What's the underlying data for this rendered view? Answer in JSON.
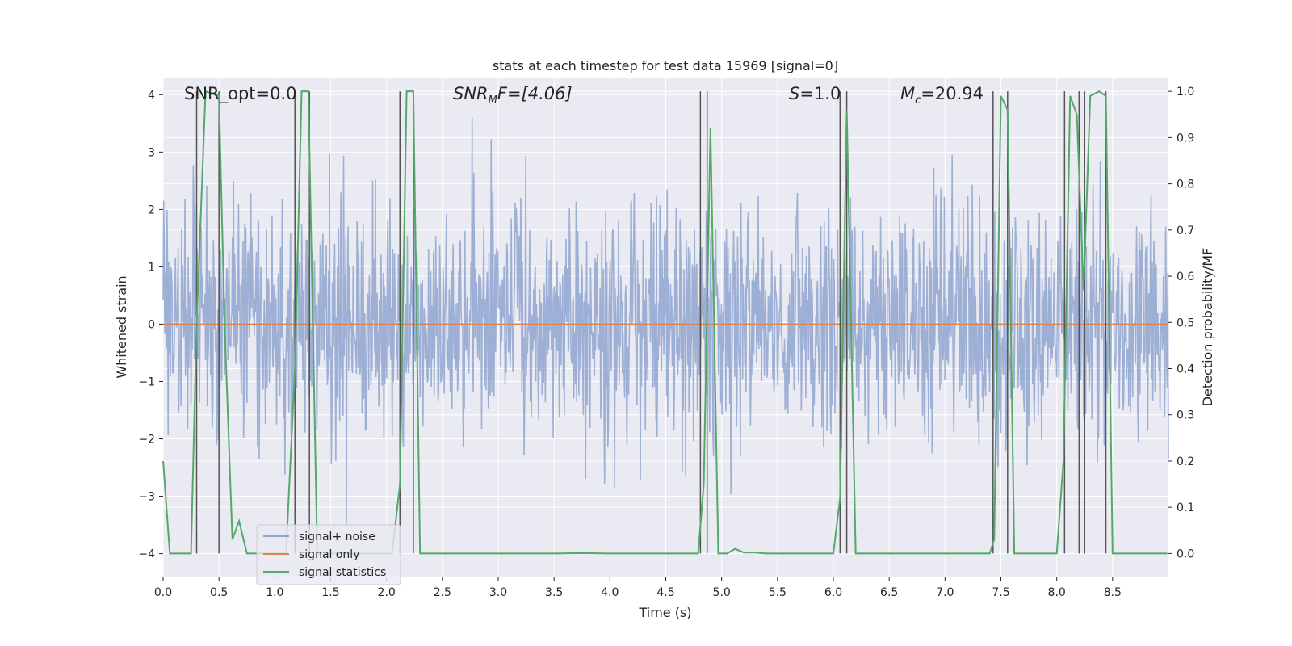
{
  "chart_data": {
    "type": "line",
    "title": "stats at each timestep for test data 15969 [signal=0]",
    "xlabel": "Time (s)",
    "ylabel": "Whitened strain",
    "ylabel_right": "Detection probability/MF",
    "xlim": [
      0.0,
      9.0
    ],
    "ylim": [
      -4.4,
      4.3
    ],
    "ylim_right": [
      -0.05,
      1.03
    ],
    "x_ticks": [
      "0.0",
      "0.5",
      "1.0",
      "1.5",
      "2.0",
      "2.5",
      "3.0",
      "3.5",
      "4.0",
      "4.5",
      "5.0",
      "5.5",
      "6.0",
      "6.5",
      "7.0",
      "7.5",
      "8.0",
      "8.5"
    ],
    "x_tick_values": [
      0.0,
      0.5,
      1.0,
      1.5,
      2.0,
      2.5,
      3.0,
      3.5,
      4.0,
      4.5,
      5.0,
      5.5,
      6.0,
      6.5,
      7.0,
      7.5,
      8.0,
      8.5
    ],
    "y_ticks": [
      "−4",
      "−3",
      "−2",
      "−1",
      "0",
      "1",
      "2",
      "3",
      "4"
    ],
    "y_tick_values": [
      -4,
      -3,
      -2,
      -1,
      0,
      1,
      2,
      3,
      4
    ],
    "y_right_ticks": [
      "0.0",
      "0.1",
      "0.2",
      "0.3",
      "0.4",
      "0.5",
      "0.6",
      "0.7",
      "0.8",
      "0.9",
      "1.0"
    ],
    "y_right_tick_values": [
      0.0,
      0.1,
      0.2,
      0.3,
      0.4,
      0.5,
      0.6,
      0.7,
      0.8,
      0.9,
      1.0
    ],
    "annotations": {
      "snr_opt": "SNR_opt=0.0",
      "snr_mf_prefix": "SNR",
      "snr_mf_sub": "M",
      "snr_mf_suffix": "F=[4.06]",
      "s_label": "S",
      "s_value": "=1.0",
      "mc_label": "M",
      "mc_sub": "c",
      "mc_value": "=20.94"
    },
    "noise_envelope": {
      "note": "dense noise trace (signal + noise), rendered as pseudo-random samples",
      "sample_count": 1800,
      "typical_range": [
        -1.6,
        1.5
      ],
      "extreme_range": [
        -4.0,
        3.6
      ]
    },
    "signal_only": {
      "value": 0.0
    },
    "detection_windows": [
      [
        0.3,
        0.5
      ],
      [
        1.18,
        1.31
      ],
      [
        2.12,
        2.24
      ],
      [
        4.81,
        4.87
      ],
      [
        6.06,
        6.12
      ],
      [
        7.43,
        7.56
      ],
      [
        8.07,
        8.2
      ],
      [
        8.25,
        8.44
      ]
    ],
    "series": [
      {
        "name": "signal+ noise",
        "color": "#8fa5cf"
      },
      {
        "name": "signal only",
        "color": "#dd8452"
      },
      {
        "name": "signal statistics",
        "color": "#55a868",
        "x": [
          0.0,
          0.06,
          0.25,
          0.3,
          0.38,
          0.5,
          0.55,
          0.62,
          0.68,
          0.75,
          1.0,
          1.1,
          1.18,
          1.24,
          1.3,
          1.38,
          2.05,
          2.12,
          2.18,
          2.24,
          2.3,
          2.38,
          2.5,
          3.0,
          3.5,
          3.75,
          4.0,
          4.5,
          4.79,
          4.84,
          4.9,
          4.97,
          5.05,
          5.12,
          5.2,
          5.3,
          5.4,
          5.5,
          6.0,
          6.06,
          6.12,
          6.2,
          6.4,
          6.5,
          7.0,
          7.4,
          7.44,
          7.5,
          7.56,
          7.62,
          8.0,
          8.06,
          8.12,
          8.18,
          8.24,
          8.3,
          8.38,
          8.44,
          8.5,
          8.99
        ],
        "values": [
          0.2,
          0.0,
          0.0,
          0.5,
          1.0,
          0.99,
          0.5,
          0.03,
          0.07,
          0.0,
          0.0,
          0.0,
          0.4,
          1.0,
          1.0,
          0.0,
          0.0,
          0.15,
          1.0,
          1.0,
          0.0,
          0.0,
          0.0,
          0.0,
          0.0,
          0.001,
          0.0,
          0.0,
          0.0,
          0.15,
          0.92,
          0.0,
          0.0,
          0.01,
          0.002,
          0.002,
          0.0,
          0.0,
          0.0,
          0.12,
          0.96,
          0.0,
          0.0,
          0.0,
          0.0,
          0.0,
          0.03,
          0.99,
          0.96,
          0.0,
          0.0,
          0.2,
          0.99,
          0.95,
          0.57,
          0.99,
          1.0,
          0.99,
          0.0,
          0.0
        ]
      }
    ],
    "legend": {
      "placement": "lower-left",
      "entries": [
        "signal+ noise",
        "signal only",
        "signal statistics"
      ]
    },
    "colors": {
      "background": "#eaeaf2",
      "grid": "#ffffff",
      "noise": "#8fa5cf",
      "signal_only": "#dd8452",
      "statistics": "#55a868",
      "window_lines": "#555555"
    }
  }
}
